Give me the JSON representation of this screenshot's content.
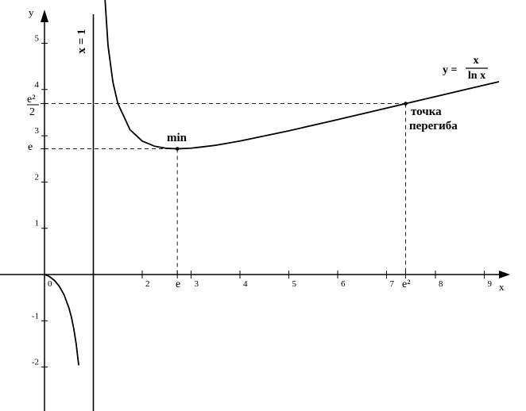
{
  "chart_data": {
    "type": "line",
    "title": "",
    "xlabel": "x",
    "ylabel": "y",
    "xlim": [
      -0.2,
      9.4
    ],
    "ylim": [
      -2.85,
      5.7
    ],
    "x_ticks": [
      {
        "value": 0,
        "label": "0"
      },
      {
        "value": 2,
        "label": "2"
      },
      {
        "value": 3,
        "label": "3"
      },
      {
        "value": 4,
        "label": "4"
      },
      {
        "value": 5,
        "label": "5"
      },
      {
        "value": 6,
        "label": "6"
      },
      {
        "value": 7,
        "label": "7"
      },
      {
        "value": 8,
        "label": "8"
      },
      {
        "value": 9,
        "label": "9"
      }
    ],
    "y_ticks": [
      {
        "value": -2,
        "label": "-2"
      },
      {
        "value": -1,
        "label": "-1"
      },
      {
        "value": 1,
        "label": "1"
      },
      {
        "value": 2,
        "label": "2"
      },
      {
        "value": 3,
        "label": "3"
      },
      {
        "value": 4,
        "label": "4"
      },
      {
        "value": 5,
        "label": "5"
      }
    ],
    "special_x_labels": {
      "e": "e",
      "e2": "e²"
    },
    "special_y_labels": {
      "e": "e",
      "e2_half_num": "e²",
      "e2_half_den": "2"
    },
    "series": [
      {
        "function": "x / ln x",
        "segments": [
          {
            "x": [
              0.02,
              0.1,
              0.2,
              0.3,
              0.4,
              0.5,
              0.55,
              0.6,
              0.65,
              0.7
            ],
            "y": [
              -0.005,
              -0.043,
              -0.124,
              -0.249,
              -0.437,
              -0.721,
              -0.919,
              -1.175,
              -1.51,
              -1.963
            ]
          },
          {
            "x": [
              1.2,
              1.3,
              1.4,
              1.5,
              1.75,
              2.0,
              2.25,
              2.5,
              2.718,
              3.0,
              3.5,
              4.0,
              5.0,
              6.0,
              7.0,
              7.389,
              8.0,
              9.0,
              9.3
            ],
            "y": [
              6.58,
              4.95,
              4.16,
              3.7,
              3.13,
              2.885,
              2.775,
              2.728,
              2.718,
              2.731,
              2.794,
              2.885,
              3.107,
              3.349,
              3.597,
              3.695,
              3.847,
              4.096,
              4.168
            ]
          }
        ]
      }
    ],
    "asymptote": {
      "x": 1,
      "label": "x = 1"
    },
    "points": [
      {
        "x": 2.718,
        "y": 2.718,
        "label": "min"
      },
      {
        "x": 7.389,
        "y": 3.695,
        "label_lines": [
          "точка",
          "перегиба"
        ]
      }
    ],
    "equation": {
      "lhs": "y =",
      "numerator": "x",
      "denominator": "ln x"
    },
    "grid": false
  },
  "colors": {
    "curve": "#000000",
    "axis": "#000000",
    "guide": "#000000"
  }
}
